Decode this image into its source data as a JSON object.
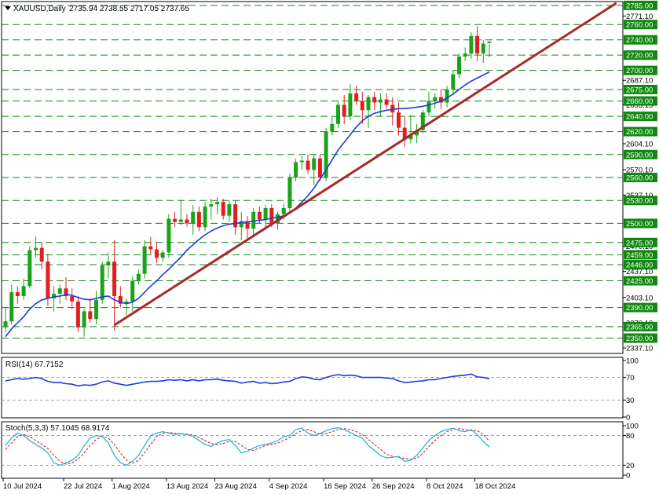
{
  "header": {
    "symbol": "XAUUSD,Daily",
    "ohlc": "2735.94 2738.55 2717.05 2737.65"
  },
  "colors": {
    "up": "#1aa31a",
    "down": "#e02020",
    "ma": "#1c3ce0",
    "trendline": "#a52a2a",
    "level": "#118811",
    "rsi": "#1c3ce0",
    "stoch_main": "#1ab0d8",
    "stoch_signal": "#e02020"
  },
  "chart_data": [
    {
      "type": "candlestick",
      "name": "price",
      "ylim": [
        2330,
        2790
      ],
      "x_labels": [
        "10 Jul 2024",
        "22 Jul 2024",
        "1 Aug 2024",
        "13 Aug 2024",
        "23 Aug 2024",
        "4 Sep 2024",
        "16 Sep 2024",
        "26 Sep 2024",
        "8 Oct 2024",
        "18 Oct 2024"
      ],
      "x_label_bars": [
        0,
        10,
        18,
        27,
        35,
        44,
        53,
        61,
        70,
        78
      ],
      "candles": [
        [
          2364,
          2390,
          2358,
          2372
        ],
        [
          2372,
          2420,
          2368,
          2410
        ],
        [
          2410,
          2418,
          2395,
          2405
        ],
        [
          2405,
          2428,
          2400,
          2418
        ],
        [
          2418,
          2470,
          2415,
          2465
        ],
        [
          2465,
          2483,
          2455,
          2468
        ],
        [
          2468,
          2475,
          2440,
          2450
        ],
        [
          2450,
          2460,
          2392,
          2402
        ],
        [
          2402,
          2418,
          2385,
          2408
        ],
        [
          2408,
          2420,
          2395,
          2415
        ],
        [
          2415,
          2430,
          2400,
          2405
        ],
        [
          2405,
          2415,
          2388,
          2398
        ],
        [
          2398,
          2405,
          2358,
          2364
        ],
        [
          2364,
          2388,
          2352,
          2385
        ],
        [
          2385,
          2402,
          2370,
          2375
        ],
        [
          2375,
          2412,
          2368,
          2400
        ],
        [
          2400,
          2450,
          2395,
          2445
        ],
        [
          2445,
          2462,
          2428,
          2450
        ],
        [
          2450,
          2478,
          2360,
          2405
        ],
        [
          2405,
          2418,
          2390,
          2395
        ],
        [
          2395,
          2402,
          2380,
          2398
        ],
        [
          2398,
          2430,
          2385,
          2425
        ],
        [
          2425,
          2440,
          2420,
          2434
        ],
        [
          2434,
          2478,
          2428,
          2470
        ],
        [
          2470,
          2482,
          2460,
          2466
        ],
        [
          2466,
          2475,
          2448,
          2455
        ],
        [
          2455,
          2465,
          2450,
          2462
        ],
        [
          2462,
          2512,
          2455,
          2506
        ],
        [
          2506,
          2515,
          2495,
          2502
        ],
        [
          2502,
          2531,
          2498,
          2505
        ],
        [
          2505,
          2512,
          2496,
          2500
        ],
        [
          2500,
          2524,
          2485,
          2515
        ],
        [
          2515,
          2522,
          2490,
          2495
        ],
        [
          2495,
          2528,
          2490,
          2522
        ],
        [
          2522,
          2532,
          2505,
          2525
        ],
        [
          2525,
          2534,
          2512,
          2528
        ],
        [
          2528,
          2532,
          2505,
          2510
        ],
        [
          2510,
          2530,
          2502,
          2525
        ],
        [
          2525,
          2530,
          2485,
          2495
        ],
        [
          2495,
          2515,
          2478,
          2503
        ],
        [
          2503,
          2510,
          2480,
          2493
        ],
        [
          2493,
          2520,
          2485,
          2515
        ],
        [
          2515,
          2522,
          2500,
          2505
        ],
        [
          2505,
          2524,
          2492,
          2520
        ],
        [
          2520,
          2525,
          2495,
          2500
        ],
        [
          2500,
          2515,
          2492,
          2512
        ],
        [
          2512,
          2526,
          2505,
          2520
        ],
        [
          2520,
          2565,
          2515,
          2560
        ],
        [
          2560,
          2585,
          2555,
          2580
        ],
        [
          2580,
          2588,
          2570,
          2582
        ],
        [
          2582,
          2590,
          2565,
          2570
        ],
        [
          2570,
          2590,
          2550,
          2585
        ],
        [
          2585,
          2590,
          2555,
          2560
        ],
        [
          2560,
          2625,
          2555,
          2620
        ],
        [
          2620,
          2640,
          2615,
          2630
        ],
        [
          2630,
          2660,
          2625,
          2655
        ],
        [
          2655,
          2668,
          2630,
          2640
        ],
        [
          2640,
          2682,
          2635,
          2670
        ],
        [
          2670,
          2680,
          2655,
          2660
        ],
        [
          2660,
          2672,
          2630,
          2648
        ],
        [
          2648,
          2668,
          2625,
          2665
        ],
        [
          2665,
          2672,
          2648,
          2658
        ],
        [
          2658,
          2670,
          2640,
          2662
        ],
        [
          2662,
          2670,
          2650,
          2655
        ],
        [
          2655,
          2665,
          2628,
          2645
        ],
        [
          2645,
          2658,
          2615,
          2625
        ],
        [
          2625,
          2640,
          2600,
          2610
        ],
        [
          2610,
          2642,
          2605,
          2615
        ],
        [
          2615,
          2630,
          2605,
          2622
        ],
        [
          2622,
          2648,
          2618,
          2645
        ],
        [
          2645,
          2672,
          2640,
          2660
        ],
        [
          2660,
          2670,
          2650,
          2665
        ],
        [
          2665,
          2675,
          2650,
          2658
        ],
        [
          2658,
          2680,
          2652,
          2675
        ],
        [
          2675,
          2700,
          2670,
          2695
        ],
        [
          2695,
          2722,
          2690,
          2718
        ],
        [
          2718,
          2730,
          2712,
          2722
        ],
        [
          2722,
          2750,
          2715,
          2745
        ],
        [
          2745,
          2758,
          2712,
          2722
        ],
        [
          2722,
          2740,
          2710,
          2735
        ],
        [
          2735.94,
          2738.55,
          2717.05,
          2737.65
        ]
      ],
      "ma": [
        2352,
        2362,
        2370,
        2378,
        2388,
        2395,
        2400,
        2402,
        2404,
        2405,
        2407,
        2406,
        2403,
        2401,
        2400,
        2402,
        2404,
        2405,
        2400,
        2397,
        2395,
        2397,
        2402,
        2410,
        2418,
        2425,
        2433,
        2440,
        2448,
        2456,
        2465,
        2472,
        2479,
        2485,
        2490,
        2494,
        2497,
        2499,
        2500,
        2501,
        2502,
        2503,
        2504,
        2505,
        2507,
        2508,
        2510,
        2514,
        2520,
        2528,
        2536,
        2546,
        2558,
        2570,
        2583,
        2596,
        2606,
        2616,
        2626,
        2634,
        2640,
        2644,
        2646,
        2648,
        2649,
        2650,
        2650,
        2651,
        2652,
        2653,
        2655,
        2657,
        2660,
        2664,
        2669,
        2675,
        2681,
        2686,
        2690,
        2694,
        2698
      ],
      "trendline": [
        [
          18,
          2367
        ],
        [
          101,
          2788
        ]
      ],
      "levels": [
        2785,
        2760,
        2740,
        2720,
        2700,
        2675,
        2660,
        2640,
        2620,
        2590,
        2560,
        2530,
        2500,
        2475,
        2459,
        2446,
        2425,
        2390,
        2365,
        2350
      ],
      "axis_ticks": [
        2771.1,
        2687.1,
        2655.15,
        2604.1,
        2570.1,
        2537.1,
        2470.1,
        2437.1,
        2403.1,
        2370.1,
        2337.1
      ]
    },
    {
      "type": "line",
      "name": "RSI(14)",
      "label": "RSI(14) 67.7152",
      "ylim": [
        0,
        100
      ],
      "ticks": [
        100,
        70,
        30,
        0
      ],
      "values": [
        64,
        66,
        68,
        67,
        68,
        70,
        68,
        63,
        61,
        61,
        59,
        58,
        55,
        57,
        56,
        58,
        62,
        64,
        60,
        58,
        56,
        58,
        60,
        62,
        63,
        63,
        64,
        66,
        65,
        66,
        64,
        66,
        64,
        66,
        66,
        67,
        65,
        64,
        63,
        60,
        62,
        63,
        60,
        61,
        59,
        60,
        62,
        63,
        68,
        71,
        70,
        67,
        66,
        70,
        73,
        75,
        73,
        74,
        73,
        70,
        70,
        70,
        70,
        69,
        68,
        64,
        61,
        62,
        63,
        64,
        66,
        66,
        68,
        70,
        72,
        73,
        74,
        76,
        71,
        70,
        67.7152
      ]
    },
    {
      "type": "line",
      "name": "Stoch(5,3,3)",
      "label": "Stoch(5,3,3) 57.1045 68.9174",
      "ylim": [
        0,
        100
      ],
      "ticks": [
        100,
        80,
        20,
        0
      ],
      "main": [
        60,
        75,
        85,
        80,
        70,
        62,
        55,
        45,
        25,
        20,
        25,
        30,
        40,
        60,
        75,
        80,
        78,
        65,
        40,
        25,
        20,
        28,
        40,
        60,
        80,
        85,
        88,
        85,
        82,
        84,
        82,
        78,
        70,
        62,
        58,
        65,
        70,
        72,
        60,
        45,
        48,
        55,
        60,
        62,
        65,
        70,
        78,
        80,
        92,
        95,
        85,
        80,
        84,
        90,
        94,
        96,
        92,
        86,
        80,
        75,
        60,
        50,
        40,
        35,
        36,
        38,
        28,
        30,
        40,
        55,
        70,
        80,
        88,
        92,
        95,
        90,
        88,
        92,
        82,
        68,
        57.1045
      ],
      "signal": [
        52,
        65,
        78,
        82,
        78,
        70,
        62,
        54,
        40,
        28,
        22,
        25,
        32,
        45,
        60,
        72,
        78,
        75,
        62,
        45,
        30,
        24,
        30,
        45,
        62,
        78,
        85,
        86,
        85,
        84,
        83,
        81,
        76,
        70,
        64,
        62,
        64,
        68,
        68,
        60,
        52,
        50,
        55,
        60,
        62,
        65,
        70,
        76,
        84,
        90,
        92,
        88,
        83,
        84,
        88,
        92,
        94,
        92,
        88,
        82,
        72,
        62,
        52,
        42,
        38,
        36,
        34,
        32,
        34,
        44,
        58,
        70,
        80,
        88,
        92,
        94,
        92,
        90,
        90,
        82,
        68.9174
      ]
    }
  ]
}
